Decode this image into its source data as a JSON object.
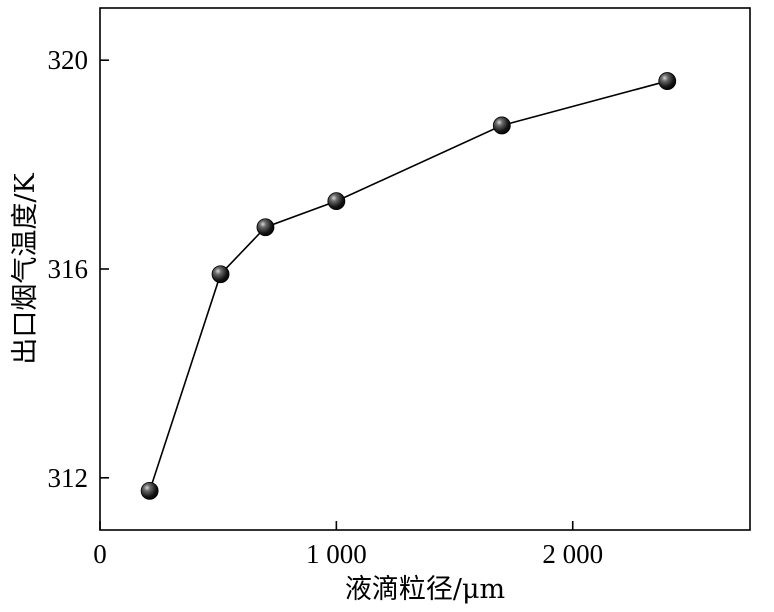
{
  "chart_data": {
    "type": "scatter",
    "xlabel": "液滴粒径/μm",
    "ylabel": "出口烟气温度/K",
    "xlim": [
      0,
      2750
    ],
    "ylim": [
      311,
      321
    ],
    "x_ticks": [
      0,
      1000,
      2000
    ],
    "x_tick_labels": [
      "0",
      "1 000",
      "2 000"
    ],
    "y_ticks": [
      312,
      316,
      320
    ],
    "y_tick_labels": [
      "312",
      "316",
      "320"
    ],
    "grid": false,
    "line_color": "#000000",
    "marker": "sphere",
    "series": [
      {
        "x": [
          210,
          510,
          700,
          1000,
          1700,
          2400
        ],
        "y": [
          311.75,
          315.9,
          316.8,
          317.3,
          318.75,
          319.6
        ]
      }
    ]
  }
}
